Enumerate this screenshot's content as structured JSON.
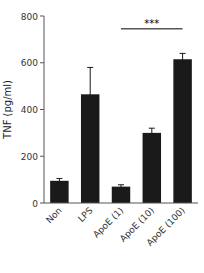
{
  "chart_data": {
    "type": "bar",
    "categories": [
      "Non",
      "LPS",
      "ApoE (1)",
      "ApoE (10)",
      "ApoE (100)"
    ],
    "values": [
      95,
      465,
      70,
      300,
      615
    ],
    "errors": [
      10,
      115,
      8,
      20,
      25
    ],
    "color": "#1a1a1a",
    "ylabel": "TNF (pg/ml)",
    "ylim": [
      0,
      800
    ],
    "yticks": [
      0,
      200,
      400,
      600,
      800
    ],
    "grid": false,
    "annotations": [
      {
        "text": "***",
        "from": "ApoE (1)",
        "to": "ApoE (100)",
        "y": 745,
        "text_y": 748
      }
    ]
  }
}
